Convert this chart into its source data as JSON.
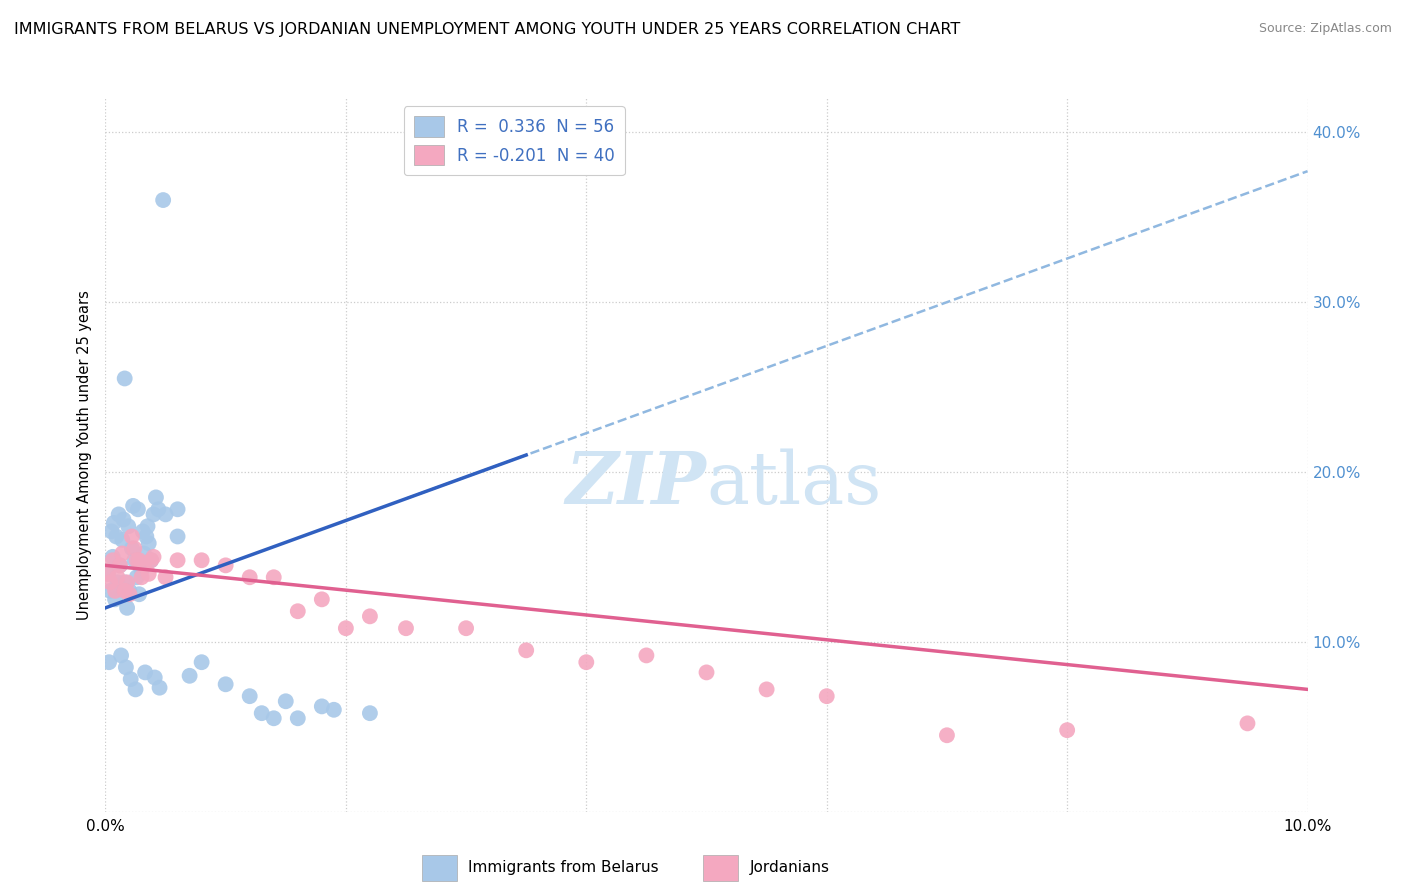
{
  "title": "IMMIGRANTS FROM BELARUS VS JORDANIAN UNEMPLOYMENT AMONG YOUTH UNDER 25 YEARS CORRELATION CHART",
  "source": "Source: ZipAtlas.com",
  "xlabel_bottom": "Immigrants from Belarus",
  "xlabel_bottom2": "Jordanians",
  "ylabel": "Unemployment Among Youth under 25 years",
  "legend_r1": "R =  0.336  N = 56",
  "legend_r2": "R = -0.201  N = 40",
  "blue_color": "#a8c8e8",
  "pink_color": "#f4a8c0",
  "blue_line_color": "#3060c0",
  "pink_line_color": "#e06090",
  "dashed_line_color": "#90b8e0",
  "watermark_color": "#d0e4f4",
  "xmin": 0.0,
  "xmax": 0.1,
  "ymin": 0.0,
  "ymax": 0.42,
  "right_yticks": [
    0.1,
    0.2,
    0.3,
    0.4
  ],
  "right_yticklabels": [
    "10.0%",
    "20.0%",
    "30.0%",
    "40.0%"
  ],
  "blue_scatter_x": [
    0.0002,
    0.0004,
    0.0006,
    0.0008,
    0.001,
    0.0012,
    0.0014,
    0.0016,
    0.0018,
    0.002,
    0.0022,
    0.0024,
    0.0026,
    0.0028,
    0.003,
    0.0032,
    0.0034,
    0.0036,
    0.0038,
    0.004,
    0.0042,
    0.0044,
    0.0005,
    0.0007,
    0.0009,
    0.0011,
    0.0015,
    0.0019,
    0.0023,
    0.0027,
    0.0031,
    0.0035,
    0.005,
    0.006,
    0.007,
    0.008,
    0.01,
    0.012,
    0.015,
    0.018,
    0.0003,
    0.0013,
    0.0017,
    0.0021,
    0.0025,
    0.0033,
    0.0041,
    0.0045,
    0.0048,
    0.006,
    0.013,
    0.016,
    0.019,
    0.022,
    0.014,
    0.0016
  ],
  "blue_scatter_y": [
    0.14,
    0.13,
    0.15,
    0.125,
    0.135,
    0.145,
    0.16,
    0.135,
    0.12,
    0.13,
    0.155,
    0.148,
    0.138,
    0.128,
    0.142,
    0.152,
    0.162,
    0.158,
    0.148,
    0.175,
    0.185,
    0.178,
    0.165,
    0.17,
    0.162,
    0.175,
    0.172,
    0.168,
    0.18,
    0.178,
    0.165,
    0.168,
    0.175,
    0.162,
    0.08,
    0.088,
    0.075,
    0.068,
    0.065,
    0.062,
    0.088,
    0.092,
    0.085,
    0.078,
    0.072,
    0.082,
    0.079,
    0.073,
    0.36,
    0.178,
    0.058,
    0.055,
    0.06,
    0.058,
    0.055,
    0.255
  ],
  "pink_scatter_x": [
    0.0002,
    0.0004,
    0.0006,
    0.0008,
    0.001,
    0.0012,
    0.0014,
    0.0016,
    0.0018,
    0.002,
    0.0022,
    0.0024,
    0.0026,
    0.003,
    0.004,
    0.005,
    0.006,
    0.008,
    0.01,
    0.012,
    0.0028,
    0.0032,
    0.0036,
    0.0038,
    0.014,
    0.016,
    0.018,
    0.02,
    0.022,
    0.025,
    0.03,
    0.035,
    0.04,
    0.045,
    0.05,
    0.055,
    0.06,
    0.07,
    0.08,
    0.095
  ],
  "pink_scatter_y": [
    0.14,
    0.135,
    0.148,
    0.13,
    0.138,
    0.145,
    0.152,
    0.13,
    0.135,
    0.128,
    0.162,
    0.155,
    0.148,
    0.138,
    0.15,
    0.138,
    0.148,
    0.148,
    0.145,
    0.138,
    0.148,
    0.145,
    0.14,
    0.148,
    0.138,
    0.118,
    0.125,
    0.108,
    0.115,
    0.108,
    0.108,
    0.095,
    0.088,
    0.092,
    0.082,
    0.072,
    0.068,
    0.045,
    0.048,
    0.052
  ],
  "background_color": "#ffffff",
  "grid_color": "#cccccc"
}
